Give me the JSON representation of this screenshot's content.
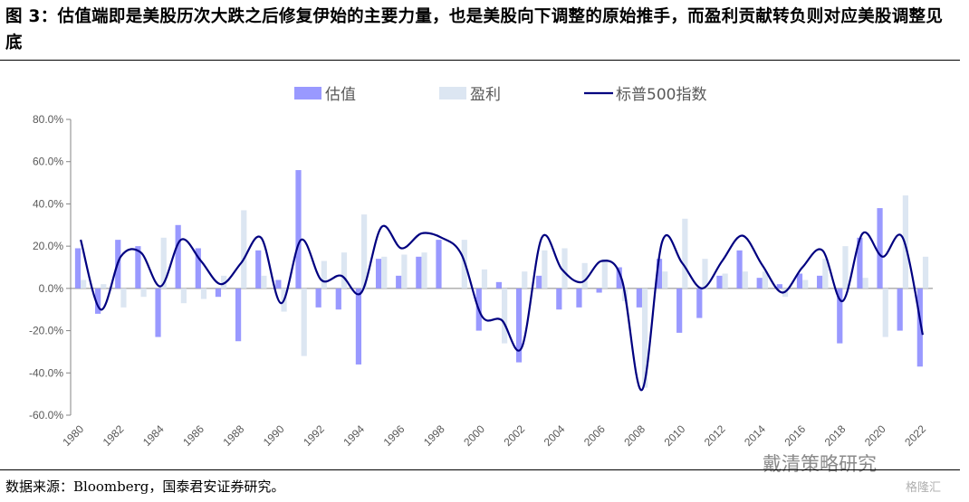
{
  "figure": {
    "title": "图 3：估值端即是美股历次大跌之后修复伊始的主要力量，也是美股向下调整的原始推手，而盈利贡献转负则对应美股调整见底",
    "source": "数据来源：Bloomberg，国泰君安证券研究。",
    "watermark": "戴清策略研究",
    "watermark_small": "格隆汇"
  },
  "chart_data": {
    "type": "bar",
    "categories": [
      "1980",
      "1981",
      "1982",
      "1983",
      "1984",
      "1985",
      "1986",
      "1987",
      "1988",
      "1989",
      "1990",
      "1991",
      "1992",
      "1993",
      "1994",
      "1995",
      "1996",
      "1997",
      "1998",
      "1999",
      "2000",
      "2001",
      "2002",
      "2003",
      "2004",
      "2005",
      "2006",
      "2007",
      "2008",
      "2009",
      "2010",
      "2011",
      "2012",
      "2013",
      "2014",
      "2015",
      "2016",
      "2017",
      "2018",
      "2019",
      "2020",
      "2021",
      "2022"
    ],
    "x_tick_labels": [
      "1980",
      "1982",
      "1984",
      "1986",
      "1988",
      "1990",
      "1992",
      "1994",
      "1996",
      "1998",
      "2000",
      "2002",
      "2004",
      "2006",
      "2008",
      "2010",
      "2012",
      "2014",
      "2016",
      "2018",
      "2020",
      "2022"
    ],
    "ylim": [
      -60,
      80
    ],
    "yticks": [
      -60,
      -40,
      -20,
      0,
      20,
      40,
      60,
      80
    ],
    "ytick_labels": [
      "-60.0%",
      "-40.0%",
      "-20.0%",
      "0.0%",
      "20.0%",
      "40.0%",
      "60.0%",
      "80.0%"
    ],
    "legend_position": "top",
    "series": [
      {
        "name": "估值",
        "type": "bar",
        "color": "#9999ff",
        "values": [
          19,
          -12,
          23,
          20,
          -23,
          30,
          19,
          -4,
          -25,
          18,
          4,
          56,
          -9,
          -10,
          -36,
          14,
          6,
          15,
          23,
          0,
          -20,
          3,
          -35,
          6,
          -10,
          -9,
          -2,
          10,
          -9,
          14,
          -21,
          -14,
          6,
          18,
          5,
          2,
          7,
          6,
          -26,
          24,
          38,
          -20,
          -37
        ]
      },
      {
        "name": "盈利",
        "type": "bar",
        "color": "#dce6f2",
        "values": [
          4,
          2,
          -9,
          -4,
          24,
          -7,
          -5,
          6,
          37,
          6,
          -11,
          -32,
          13,
          17,
          35,
          15,
          16,
          17,
          0,
          23,
          9,
          -26,
          8,
          18,
          19,
          12,
          14,
          -6,
          -47,
          8,
          33,
          14,
          7,
          8,
          8,
          -4,
          4,
          14,
          20,
          5,
          -23,
          44,
          15
        ]
      },
      {
        "name": "标普500指数",
        "type": "line",
        "color": "#000080",
        "values": [
          23,
          -10,
          15,
          17,
          1,
          23,
          13,
          2,
          12,
          24,
          -7,
          23,
          4,
          6,
          -2,
          29,
          19,
          26,
          24,
          16,
          -13,
          -15,
          -28,
          24,
          9,
          3,
          13,
          4,
          -48,
          22,
          12,
          0,
          13,
          25,
          11,
          -2,
          10,
          18,
          -6,
          26,
          15,
          24,
          -22
        ]
      }
    ]
  }
}
